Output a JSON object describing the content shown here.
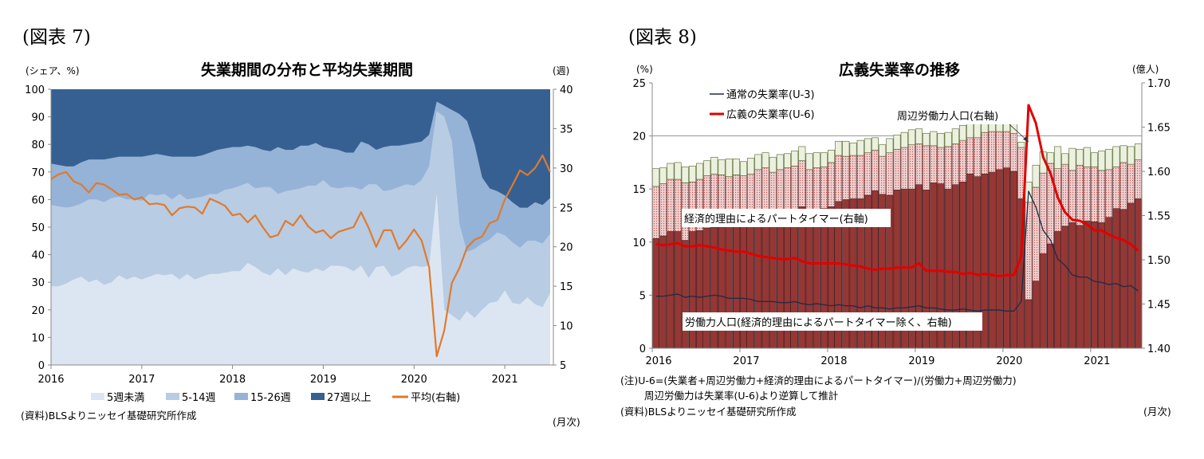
{
  "chart_data": [
    {
      "type": "area",
      "figure_label": "(図表 7)",
      "title": "失業期間の分布と平均失業期間",
      "ylabel_left": "(シェア、%)",
      "ylabel_right": "(週)",
      "xlabel": "(月次)",
      "source": "(資料)BLSよりニッセイ基礎研究所作成",
      "x_range": [
        "2016-01",
        "2021-07"
      ],
      "frequency": "monthly",
      "x_tick_labels": [
        "2016",
        "2017",
        "2018",
        "2019",
        "2020",
        "2021"
      ],
      "ylim_left": [
        0,
        100
      ],
      "ylim_right": [
        5,
        40
      ],
      "y_ticks_left": [
        "0",
        "10",
        "20",
        "30",
        "40",
        "50",
        "60",
        "70",
        "80",
        "90",
        "100"
      ],
      "y_ticks_right": [
        "5",
        "10",
        "15",
        "20",
        "25",
        "30",
        "35",
        "40"
      ],
      "grid": false,
      "legend_placement": "bottom",
      "stacked": true,
      "series": [
        {
          "name": "5週未満",
          "axis": "left",
          "color": "#dce6f2",
          "values": [
            28.5,
            28.5,
            29.5,
            31,
            32,
            30,
            31,
            29,
            30,
            32.5,
            31,
            32,
            31,
            32,
            33,
            32.5,
            33,
            31,
            33,
            31,
            32,
            33,
            33,
            33.5,
            34,
            34,
            37,
            35.5,
            33.5,
            32.5,
            35,
            32.5,
            35,
            34,
            33.5,
            35,
            34,
            36,
            36,
            35.5,
            34,
            36,
            31.5,
            35.5,
            36,
            32,
            33,
            35,
            36,
            35.5,
            36,
            62,
            20,
            18,
            16,
            19.5,
            17,
            20,
            22.5,
            23,
            27,
            22.5,
            22,
            24.5,
            22,
            21,
            26
          ]
        },
        {
          "name": "5-14週",
          "axis": "left",
          "color": "#b8cce4",
          "values": [
            29.5,
            29,
            27.5,
            26.5,
            26.5,
            30,
            29,
            30,
            30.5,
            28.5,
            29,
            28,
            28.5,
            30,
            28.5,
            29.5,
            27,
            31,
            27,
            29.5,
            29,
            29,
            29,
            30,
            30,
            31,
            29,
            28.5,
            31,
            32,
            27,
            30.5,
            28.5,
            30,
            31.5,
            30,
            33,
            28.5,
            28,
            29,
            30.5,
            27.5,
            34,
            30,
            27,
            31.5,
            31.5,
            30.5,
            29,
            31.5,
            36,
            30,
            70,
            63,
            35,
            21.5,
            25,
            24,
            23,
            25,
            20,
            22,
            20.5,
            20.5,
            23,
            23,
            21.5
          ]
        },
        {
          "name": "15-26週",
          "axis": "left",
          "color": "#95b3d7",
          "values": [
            15,
            15,
            15,
            14.5,
            15,
            14.5,
            14.5,
            15.5,
            14.5,
            14.5,
            15.5,
            15.5,
            16,
            14,
            15,
            14,
            15.5,
            13.5,
            15.5,
            15,
            15,
            15,
            16,
            15,
            15,
            14,
            13.5,
            15,
            13.5,
            13,
            17,
            15,
            14.5,
            15.5,
            14.5,
            15.5,
            12,
            14,
            14,
            12.5,
            12.5,
            17.5,
            14.5,
            12.5,
            16,
            16,
            15,
            14.5,
            15.5,
            14,
            11.5,
            3.5,
            4,
            11.5,
            40,
            47.5,
            38,
            24,
            18.5,
            15,
            14.5,
            14.5,
            14.5,
            12,
            14,
            14,
            13
          ]
        },
        {
          "name": "27週以上",
          "axis": "left",
          "color": "#376092",
          "values": [
            27,
            27.5,
            28,
            28,
            26.5,
            25.5,
            25.5,
            25.5,
            25,
            24.5,
            24.5,
            24.5,
            24.5,
            24,
            23.5,
            24,
            24.5,
            24.5,
            24.5,
            24.5,
            24,
            23,
            22,
            21.5,
            21,
            21,
            20.5,
            21,
            22,
            22.5,
            21,
            22,
            22,
            20.5,
            20.5,
            19.5,
            21,
            21.5,
            22,
            23,
            23,
            19,
            20,
            22,
            21,
            20.5,
            20.5,
            20,
            19.5,
            19,
            16.5,
            4.5,
            6,
            7.5,
            9,
            11.5,
            20,
            32,
            36,
            37,
            38.5,
            41,
            43,
            43,
            41,
            42,
            39.5
          ]
        },
        {
          "name": "平均(右軸)",
          "axis": "right",
          "type": "line",
          "color": "#e07a2e",
          "values": [
            28.6,
            29.2,
            29.5,
            28.3,
            27.9,
            26.9,
            28.1,
            27.9,
            27.3,
            26.6,
            26.7,
            26.0,
            26.3,
            25.4,
            25.5,
            25.3,
            24.0,
            24.9,
            25.1,
            25.0,
            24.2,
            26.1,
            25.7,
            25.2,
            24.0,
            24.2,
            23.1,
            24.0,
            22.5,
            21.2,
            21.5,
            23.3,
            22.7,
            24.0,
            22.6,
            21.8,
            22.1,
            21.1,
            21.9,
            22.2,
            22.5,
            24.4,
            22.4,
            20.0,
            22.1,
            22.1,
            19.7,
            20.8,
            22.2,
            20.8,
            17.4,
            6.1,
            9.4,
            15.4,
            17.3,
            19.9,
            20.9,
            21.3,
            23.0,
            23.4,
            26.0,
            27.8,
            29.7,
            29.1,
            30.0,
            31.6,
            29.5
          ]
        }
      ]
    },
    {
      "type": "bar+line",
      "figure_label": "(図表 8)",
      "title": "広義失業率の推移",
      "ylabel_left": "(%)",
      "ylabel_right": "(億人)",
      "xlabel": "(月次)",
      "notes": [
        "(注)U-6=(失業者+周辺労働力+経済的理由によるパートタイマー)/(労働力+周辺労働力)",
        "周辺労働力は失業率(U-6)より逆算して推計"
      ],
      "source": "(資料)BLSよりニッセイ基礎研究所作成",
      "x_range": [
        "2016-01",
        "2021-07"
      ],
      "frequency": "monthly",
      "x_tick_labels": [
        "2016",
        "2017",
        "2018",
        "2019",
        "2020",
        "2021"
      ],
      "ylim_left": [
        0,
        25
      ],
      "ylim_right": [
        1.4,
        1.7
      ],
      "y_ticks_left": [
        "0",
        "5",
        "10",
        "15",
        "20",
        "25"
      ],
      "y_ticks_right": [
        "1.40",
        "1.45",
        "1.50",
        "1.55",
        "1.60",
        "1.65",
        "1.70"
      ],
      "grid": "horizontal line at 20",
      "legend_placement": "top-left",
      "annotations": {
        "pt": "経済的理由によるパートタイマー(右軸)",
        "lf": "労働力人口(経済的理由によるパートタイマー除く、右軸)",
        "ma": "周辺労働力人口(右軸)"
      },
      "bars_stacked_right_axis": [
        {
          "name": "労働力人口(経済的理由によるパートタイマー除く、右軸)",
          "color": "#953735",
          "values": [
            1.524,
            1.527,
            1.532,
            1.532,
            1.522,
            1.532,
            1.533,
            1.536,
            1.537,
            1.537,
            1.538,
            1.538,
            1.539,
            1.542,
            1.544,
            1.546,
            1.549,
            1.55,
            1.551,
            1.554,
            1.56,
            1.556,
            1.557,
            1.558,
            1.56,
            1.566,
            1.568,
            1.569,
            1.569,
            1.573,
            1.578,
            1.574,
            1.573,
            1.579,
            1.58,
            1.58,
            1.585,
            1.579,
            1.587,
            1.586,
            1.58,
            1.585,
            1.588,
            1.597,
            1.594,
            1.597,
            1.599,
            1.602,
            1.604,
            1.6,
            1.569,
            1.455,
            1.476,
            1.507,
            1.518,
            1.532,
            1.538,
            1.542,
            1.539,
            1.544,
            1.543,
            1.542,
            1.548,
            1.558,
            1.557,
            1.564,
            1.569
          ]
        },
        {
          "name": "経済的理由によるパートタイマー(右軸)",
          "color": "#e6b9b8",
          "values": [
            0.059,
            0.059,
            0.059,
            0.059,
            0.065,
            0.056,
            0.058,
            0.059,
            0.06,
            0.059,
            0.056,
            0.058,
            0.056,
            0.055,
            0.058,
            0.058,
            0.05,
            0.052,
            0.053,
            0.052,
            0.052,
            0.046,
            0.047,
            0.047,
            0.05,
            0.052,
            0.049,
            0.049,
            0.049,
            0.048,
            0.046,
            0.043,
            0.048,
            0.046,
            0.047,
            0.05,
            0.046,
            0.05,
            0.042,
            0.041,
            0.048,
            0.046,
            0.047,
            0.041,
            0.044,
            0.047,
            0.046,
            0.043,
            0.041,
            0.043,
            0.058,
            0.11,
            0.106,
            0.091,
            0.091,
            0.071,
            0.07,
            0.059,
            0.068,
            0.061,
            0.062,
            0.059,
            0.054,
            0.047,
            0.053,
            0.044,
            0.044
          ]
        },
        {
          "name": "周辺労働力人口(右軸)",
          "color": "#ebf1de",
          "values": [
            0.02,
            0.018,
            0.018,
            0.019,
            0.018,
            0.018,
            0.018,
            0.017,
            0.019,
            0.017,
            0.02,
            0.018,
            0.016,
            0.018,
            0.017,
            0.017,
            0.017,
            0.017,
            0.016,
            0.017,
            0.016,
            0.018,
            0.017,
            0.016,
            0.014,
            0.016,
            0.017,
            0.014,
            0.017,
            0.016,
            0.014,
            0.013,
            0.016,
            0.016,
            0.017,
            0.017,
            0.017,
            0.014,
            0.016,
            0.016,
            0.016,
            0.017,
            0.017,
            0.018,
            0.017,
            0.013,
            0.013,
            0.013,
            0.013,
            0.013,
            0.006,
            0.023,
            0.025,
            0.024,
            0.012,
            0.025,
            0.012,
            0.025,
            0.018,
            0.022,
            0.016,
            0.022,
            0.023,
            0.023,
            0.019,
            0.02,
            0.018
          ]
        }
      ],
      "lines_left_axis": [
        {
          "name": "通常の失業率(U-3)",
          "color": "#1f2a44",
          "values": [
            4.9,
            4.9,
            5.0,
            5.1,
            4.8,
            4.9,
            4.8,
            4.9,
            5.0,
            4.9,
            4.7,
            4.7,
            4.7,
            4.6,
            4.4,
            4.4,
            4.4,
            4.3,
            4.3,
            4.4,
            4.2,
            4.1,
            4.2,
            4.1,
            4.0,
            4.1,
            4.0,
            4.0,
            3.8,
            4.0,
            3.8,
            3.8,
            3.7,
            3.8,
            3.8,
            3.9,
            4.0,
            3.8,
            3.8,
            3.7,
            3.6,
            3.6,
            3.7,
            3.6,
            3.5,
            3.6,
            3.6,
            3.6,
            3.5,
            3.5,
            4.4,
            14.8,
            13.3,
            11.1,
            10.2,
            8.4,
            7.8,
            6.9,
            6.7,
            6.7,
            6.3,
            6.2,
            6.0,
            6.1,
            5.8,
            5.9,
            5.4
          ]
        },
        {
          "name": "広義の失業率(U-6)",
          "color": "#e00000",
          "values": [
            9.8,
            9.7,
            9.8,
            9.9,
            9.6,
            9.6,
            9.7,
            9.6,
            9.5,
            9.3,
            9.2,
            9.1,
            9.1,
            8.9,
            8.7,
            8.6,
            8.5,
            8.4,
            8.4,
            8.5,
            8.2,
            8.0,
            8.0,
            8.0,
            8.0,
            8.0,
            7.9,
            7.8,
            7.7,
            7.5,
            7.4,
            7.5,
            7.5,
            7.6,
            7.6,
            7.6,
            8.0,
            7.3,
            7.3,
            7.3,
            7.2,
            7.2,
            7.0,
            7.1,
            6.9,
            7.0,
            6.9,
            6.8,
            6.9,
            6.9,
            8.7,
            22.9,
            21.2,
            18.0,
            16.5,
            14.2,
            12.8,
            12.1,
            12.0,
            11.7,
            11.1,
            11.1,
            10.7,
            10.4,
            10.2,
            9.8,
            9.2
          ]
        }
      ]
    }
  ]
}
